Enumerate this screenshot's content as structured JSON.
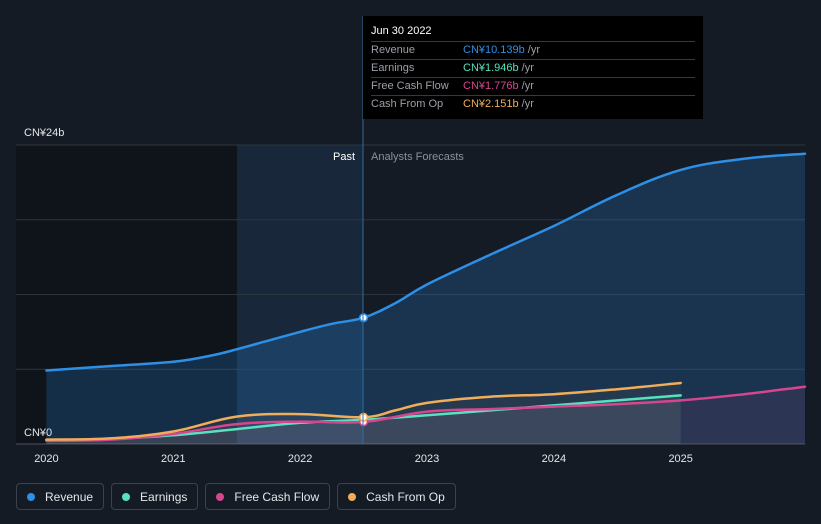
{
  "chart_data": {
    "type": "area",
    "y_axis": {
      "top_label": "CN¥24b",
      "bottom_label": "CN¥0",
      "ylim": [
        0,
        24
      ]
    },
    "x_axis": {
      "ticks": [
        "2020",
        "2021",
        "2022",
        "2023",
        "2024",
        "2025"
      ],
      "xlim": [
        2019.76,
        2025.98
      ]
    },
    "divider": {
      "x": 2022.5,
      "past_label": "Past",
      "forecast_label": "Analysts Forecasts"
    },
    "series": [
      {
        "name": "Revenue",
        "color": "#2e8fe6",
        "points": [
          [
            2020.0,
            5.9
          ],
          [
            2020.5,
            6.25
          ],
          [
            2021.0,
            6.6
          ],
          [
            2021.3,
            7.1
          ],
          [
            2021.5,
            7.6
          ],
          [
            2021.75,
            8.3
          ],
          [
            2022.0,
            9.0
          ],
          [
            2022.25,
            9.65
          ],
          [
            2022.5,
            10.139
          ],
          [
            2022.75,
            11.3
          ],
          [
            2023.0,
            12.8
          ],
          [
            2023.5,
            15.2
          ],
          [
            2024.0,
            17.5
          ],
          [
            2024.5,
            20.0
          ],
          [
            2025.0,
            22.0
          ],
          [
            2025.5,
            22.9
          ],
          [
            2025.98,
            23.3
          ]
        ]
      },
      {
        "name": "Earnings",
        "color": "#58e1c1",
        "points": [
          [
            2020.0,
            0.3
          ],
          [
            2020.5,
            0.4
          ],
          [
            2021.0,
            0.7
          ],
          [
            2021.5,
            1.2
          ],
          [
            2022.0,
            1.7
          ],
          [
            2022.5,
            1.946
          ],
          [
            2023.0,
            2.3
          ],
          [
            2023.5,
            2.7
          ],
          [
            2024.0,
            3.1
          ],
          [
            2024.5,
            3.5
          ],
          [
            2025.0,
            3.9
          ]
        ]
      },
      {
        "name": "Free Cash Flow",
        "color": "#d5468f",
        "points": [
          [
            2020.0,
            0.25
          ],
          [
            2020.5,
            0.35
          ],
          [
            2021.0,
            0.8
          ],
          [
            2021.5,
            1.6
          ],
          [
            2022.0,
            1.8
          ],
          [
            2022.5,
            1.776
          ],
          [
            2023.0,
            2.6
          ],
          [
            2023.5,
            2.8
          ],
          [
            2024.0,
            3.0
          ],
          [
            2024.5,
            3.2
          ],
          [
            2025.0,
            3.5
          ],
          [
            2025.5,
            4.0
          ],
          [
            2025.98,
            4.6
          ]
        ]
      },
      {
        "name": "Cash From Op",
        "color": "#f0ad5a",
        "points": [
          [
            2020.0,
            0.35
          ],
          [
            2020.5,
            0.45
          ],
          [
            2021.0,
            1.0
          ],
          [
            2021.5,
            2.2
          ],
          [
            2022.0,
            2.4
          ],
          [
            2022.5,
            2.151
          ],
          [
            2022.75,
            2.7
          ],
          [
            2023.0,
            3.3
          ],
          [
            2023.5,
            3.8
          ],
          [
            2024.0,
            4.0
          ],
          [
            2024.5,
            4.4
          ],
          [
            2025.0,
            4.9
          ]
        ]
      }
    ],
    "tooltip": {
      "date": "Jun 30 2022",
      "rows": [
        {
          "label": "Revenue",
          "value": "CN¥10.139b",
          "unit": "/yr",
          "color": "#2e8fe6"
        },
        {
          "label": "Earnings",
          "value": "CN¥1.946b",
          "unit": "/yr",
          "color": "#58e1c1"
        },
        {
          "label": "Free Cash Flow",
          "value": "CN¥1.776b",
          "unit": "/yr",
          "color": "#d5468f"
        },
        {
          "label": "Cash From Op",
          "value": "CN¥2.151b",
          "unit": "/yr",
          "color": "#f0ad5a"
        }
      ]
    },
    "legend": [
      {
        "label": "Revenue",
        "color": "#2e8fe6"
      },
      {
        "label": "Earnings",
        "color": "#58e1c1"
      },
      {
        "label": "Free Cash Flow",
        "color": "#d5468f"
      },
      {
        "label": "Cash From Op",
        "color": "#f0ad5a"
      }
    ]
  }
}
